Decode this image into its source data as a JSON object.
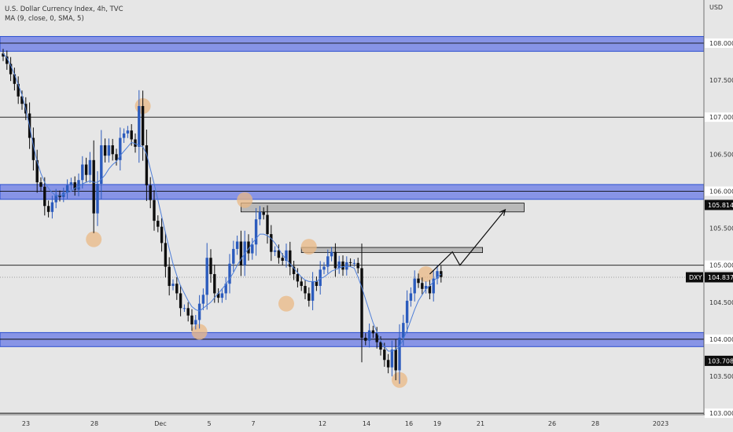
{
  "legend": {
    "title": "U.S. Dollar Currency Index, 4h, TVC",
    "indicator": "MA (9, close, 0, SMA, 5)"
  },
  "colors": {
    "background": "#e6e6e6",
    "up_candle": "#2b5bbd",
    "down_candle": "#0d0d0d",
    "ma_line": "#4f7fd8",
    "zone_fill": "#8794e6",
    "zone_border": "#2b4fd0",
    "circle": "#eab884",
    "box_fill": "#b9b9b9",
    "label_bg": "#0d0d0d",
    "label_text": "#ffffff"
  },
  "chart_data": {
    "type": "candlestick",
    "title": "U.S. Dollar Currency Index, 4h, TVC",
    "ylabel": "USD",
    "ylim": [
      102.98,
      108.53
    ],
    "x_ticks": [
      "23",
      "28",
      "Dec",
      "5",
      "7",
      "12",
      "14",
      "16",
      "19",
      "21",
      "26",
      "28",
      "2023"
    ],
    "y_ticks": [
      "108.000",
      "107.500",
      "107.000",
      "106.500",
      "106.000",
      "105.500",
      "105.000",
      "104.500",
      "104.000",
      "103.500",
      "103.000"
    ],
    "y_tick_values": [
      108.0,
      107.5,
      107.0,
      106.5,
      106.0,
      105.5,
      105.0,
      104.5,
      104.0,
      103.5,
      103.0
    ],
    "price_labels": [
      {
        "text": "105.814",
        "value": 105.814
      },
      {
        "text": "104.837",
        "value": 104.837,
        "symbol": "DXY"
      },
      {
        "text": "103.708",
        "value": 103.708
      }
    ],
    "highlighted_labels": [
      {
        "text": "108.000",
        "value": 108.0
      },
      {
        "text": "107.000",
        "value": 107.0
      },
      {
        "text": "106.000",
        "value": 106.0
      },
      {
        "text": "105.000",
        "value": 105.0
      },
      {
        "text": "104.000",
        "value": 104.0
      },
      {
        "text": "103.000",
        "value": 103.0
      }
    ],
    "close_series": [
      107.82,
      107.72,
      107.58,
      107.45,
      107.28,
      107.18,
      107.05,
      106.72,
      106.42,
      106.12,
      106.06,
      105.8,
      105.72,
      105.85,
      105.95,
      105.92,
      105.98,
      106.08,
      106.12,
      106.02,
      106.15,
      106.36,
      106.22,
      106.42,
      105.7,
      106.1,
      106.62,
      106.48,
      106.62,
      106.5,
      106.42,
      106.72,
      106.78,
      106.82,
      106.7,
      106.6,
      107.15,
      106.62,
      106.08,
      105.88,
      105.6,
      105.52,
      105.3,
      104.98,
      104.72,
      104.75,
      104.62,
      104.42,
      104.42,
      104.32,
      104.2,
      104.26,
      104.48,
      104.6,
      105.1,
      104.88,
      104.62,
      104.56,
      104.62,
      104.75,
      105.02,
      105.22,
      105.32,
      105.0,
      105.32,
      105.16,
      105.28,
      105.62,
      105.72,
      105.68,
      105.42,
      105.18,
      105.2,
      105.1,
      105.06,
      105.2,
      104.98,
      104.88,
      104.78,
      104.72,
      104.62,
      104.52,
      104.78,
      104.72,
      104.94,
      104.98,
      105.12,
      105.18,
      104.96,
      105.05,
      104.94,
      105.04,
      105.03,
      105.03,
      104.96,
      104.02,
      103.98,
      104.12,
      104.08,
      103.96,
      103.86,
      103.72,
      103.62,
      103.86,
      103.58,
      104.02,
      104.22,
      104.52,
      104.62,
      104.82,
      104.76,
      104.68,
      104.72,
      104.62,
      104.82,
      104.92,
      104.84
    ],
    "ma_series": [
      107.86,
      107.8,
      107.7,
      107.58,
      107.44,
      107.3,
      107.1,
      106.88,
      106.62,
      106.4,
      106.24,
      106.12,
      106.04,
      105.98,
      105.94,
      105.94,
      105.96,
      105.98,
      106.0,
      106.04,
      106.06,
      106.1,
      106.12,
      106.14,
      106.12,
      106.12,
      106.16,
      106.22,
      106.3,
      106.36,
      106.4,
      106.48,
      106.54,
      106.6,
      106.66,
      106.64,
      106.62,
      106.6,
      106.5,
      106.3,
      106.1,
      105.88,
      105.66,
      105.44,
      105.22,
      105.02,
      104.86,
      104.72,
      104.62,
      104.52,
      104.44,
      104.4,
      104.38,
      104.42,
      104.46,
      104.5,
      104.56,
      104.62,
      104.68,
      104.74,
      104.82,
      104.9,
      105.0,
      105.08,
      105.16,
      105.22,
      105.3,
      105.36,
      105.42,
      105.42,
      105.4,
      105.36,
      105.3,
      105.22,
      105.14,
      105.08,
      105.02,
      104.96,
      104.9,
      104.84,
      104.8,
      104.78,
      104.78,
      104.78,
      104.82,
      104.84,
      104.88,
      104.92,
      104.94,
      104.96,
      104.98,
      104.98,
      104.98,
      104.96,
      104.84,
      104.7,
      104.54,
      104.38,
      104.22,
      104.1,
      103.98,
      103.9,
      103.84,
      103.84,
      103.86,
      103.9,
      104.0,
      104.12,
      104.26,
      104.4,
      104.52,
      104.6,
      104.68,
      104.72,
      104.78,
      104.84,
      104.88
    ],
    "zones": [
      {
        "from": 107.89,
        "to": 108.09
      },
      {
        "from": 105.89,
        "to": 106.09
      },
      {
        "from": 103.9,
        "to": 104.09
      }
    ],
    "boxes": [
      {
        "from_index": 63,
        "to_index": 138,
        "low": 105.72,
        "high": 105.84
      },
      {
        "from_index": 79,
        "to_index": 127,
        "low": 105.17,
        "high": 105.24
      }
    ],
    "circles": [
      {
        "index": 37,
        "value": 107.15
      },
      {
        "index": 24,
        "value": 105.35
      },
      {
        "index": 52,
        "value": 104.1
      },
      {
        "index": 64,
        "value": 105.88
      },
      {
        "index": 75,
        "value": 104.48
      },
      {
        "index": 81,
        "value": 105.25
      },
      {
        "index": 105,
        "value": 103.45
      },
      {
        "index": 112,
        "value": 104.88
      }
    ],
    "projection_path": [
      {
        "index": 113,
        "value": 104.88
      },
      {
        "index": 119,
        "value": 105.18
      },
      {
        "index": 121,
        "value": 105.0
      },
      {
        "index": 133,
        "value": 105.75
      }
    ]
  }
}
